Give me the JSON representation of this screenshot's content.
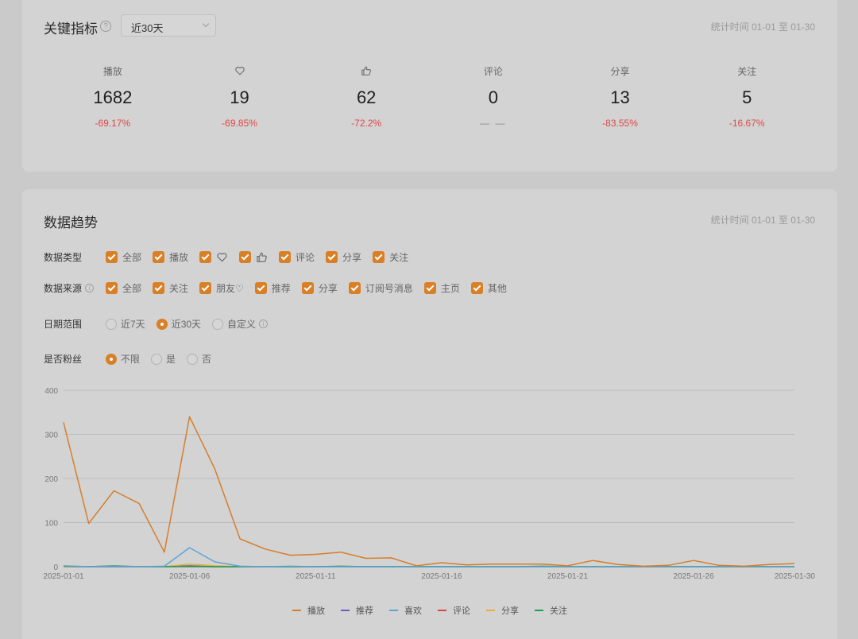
{
  "key_metrics": {
    "title": "关键指标",
    "help": "?",
    "range_select": "近30天",
    "time_range": "统计时间 01-01 至 01-30",
    "items": [
      {
        "label": "播放",
        "icon": "",
        "value": "1682",
        "change": "-69.17%"
      },
      {
        "label": "",
        "icon": "heart-icon",
        "value": "19",
        "change": "-69.85%"
      },
      {
        "label": "",
        "icon": "thumbs-up-icon",
        "value": "62",
        "change": "-72.2%"
      },
      {
        "label": "评论",
        "icon": "",
        "value": "0",
        "change": "— —"
      },
      {
        "label": "分享",
        "icon": "",
        "value": "13",
        "change": "-83.55%"
      },
      {
        "label": "关注",
        "icon": "",
        "value": "5",
        "change": "-16.67%"
      }
    ]
  },
  "trend": {
    "title": "数据趋势",
    "time_range": "统计时间 01-01 至 01-30",
    "data_type": {
      "label": "数据类型",
      "options": [
        {
          "label": "全部",
          "icon": ""
        },
        {
          "label": "播放",
          "icon": ""
        },
        {
          "label": "",
          "icon": "heart-icon"
        },
        {
          "label": "",
          "icon": "thumbs-up-icon"
        },
        {
          "label": "评论",
          "icon": ""
        },
        {
          "label": "分享",
          "icon": ""
        },
        {
          "label": "关注",
          "icon": ""
        }
      ]
    },
    "data_source": {
      "label": "数据来源",
      "info": "i",
      "options": [
        "全部",
        "关注",
        "朋友♡",
        "推荐",
        "分享",
        "订阅号消息",
        "主页",
        "其他"
      ]
    },
    "date_range": {
      "label": "日期范围",
      "info": "i",
      "options": [
        "近7天",
        "近30天",
        "自定义"
      ],
      "selected": "近30天"
    },
    "is_fan": {
      "label": "是否粉丝",
      "options": [
        "不限",
        "是",
        "否"
      ],
      "selected": "不限"
    }
  },
  "chart_data": {
    "type": "line",
    "x": [
      "2025-01-01",
      "2025-01-02",
      "2025-01-03",
      "2025-01-04",
      "2025-01-05",
      "2025-01-06",
      "2025-01-07",
      "2025-01-08",
      "2025-01-09",
      "2025-01-10",
      "2025-01-11",
      "2025-01-12",
      "2025-01-13",
      "2025-01-14",
      "2025-01-15",
      "2025-01-16",
      "2025-01-17",
      "2025-01-18",
      "2025-01-19",
      "2025-01-20",
      "2025-01-21",
      "2025-01-22",
      "2025-01-23",
      "2025-01-24",
      "2025-01-25",
      "2025-01-26",
      "2025-01-27",
      "2025-01-28",
      "2025-01-29",
      "2025-01-30"
    ],
    "x_tick_labels": [
      "2025-01-01",
      "2025-01-06",
      "2025-01-11",
      "2025-01-16",
      "2025-01-21",
      "2025-01-26",
      "2025-01-30"
    ],
    "ylim": [
      0,
      400
    ],
    "y_ticks": [
      0,
      100,
      200,
      300,
      400
    ],
    "grid": true,
    "legend_position": "bottom",
    "series": [
      {
        "name": "播放",
        "color": "#d47f2b",
        "values": [
          327,
          98,
          172,
          143,
          33,
          340,
          222,
          63,
          40,
          26,
          28,
          33,
          19,
          20,
          2,
          9,
          4,
          6,
          6,
          6,
          2,
          14,
          5,
          1,
          3,
          14,
          3,
          1,
          5,
          7
        ]
      },
      {
        "name": "推荐",
        "color": "#6a5fc1",
        "values": [
          0,
          0,
          0,
          0,
          0,
          2,
          0,
          0,
          0,
          0,
          0,
          0,
          0,
          0,
          0,
          0,
          0,
          0,
          0,
          0,
          0,
          0,
          0,
          0,
          0,
          0,
          0,
          0,
          0,
          0
        ]
      },
      {
        "name": "喜欢",
        "color": "#5ba6d8",
        "values": [
          2,
          0,
          1,
          0,
          1,
          43,
          11,
          1,
          0,
          1,
          0,
          0,
          0,
          0,
          0,
          0,
          0,
          0,
          0,
          0,
          0,
          0,
          0,
          0,
          0,
          0,
          0,
          0,
          0,
          0
        ]
      },
      {
        "name": "评论",
        "color": "#d44a3c",
        "values": [
          0,
          0,
          0,
          0,
          0,
          0,
          0,
          0,
          0,
          0,
          0,
          0,
          0,
          0,
          0,
          0,
          0,
          0,
          0,
          0,
          0,
          0,
          0,
          0,
          0,
          0,
          0,
          0,
          0,
          0
        ]
      },
      {
        "name": "分享",
        "color": "#e6b132",
        "values": [
          0,
          0,
          1,
          0,
          0,
          6,
          2,
          0,
          0,
          0,
          0,
          0,
          0,
          0,
          0,
          0,
          0,
          0,
          0,
          0,
          0,
          0,
          0,
          0,
          0,
          0,
          0,
          0,
          0,
          0
        ]
      },
      {
        "name": "关注",
        "color": "#1e9e5a",
        "values": [
          1,
          0,
          2,
          0,
          0,
          1,
          0,
          0,
          0,
          0,
          0,
          1,
          0,
          0,
          0,
          0,
          0,
          0,
          0,
          1,
          0,
          0,
          0,
          0,
          0,
          0,
          0,
          0,
          0,
          0
        ]
      }
    ]
  }
}
